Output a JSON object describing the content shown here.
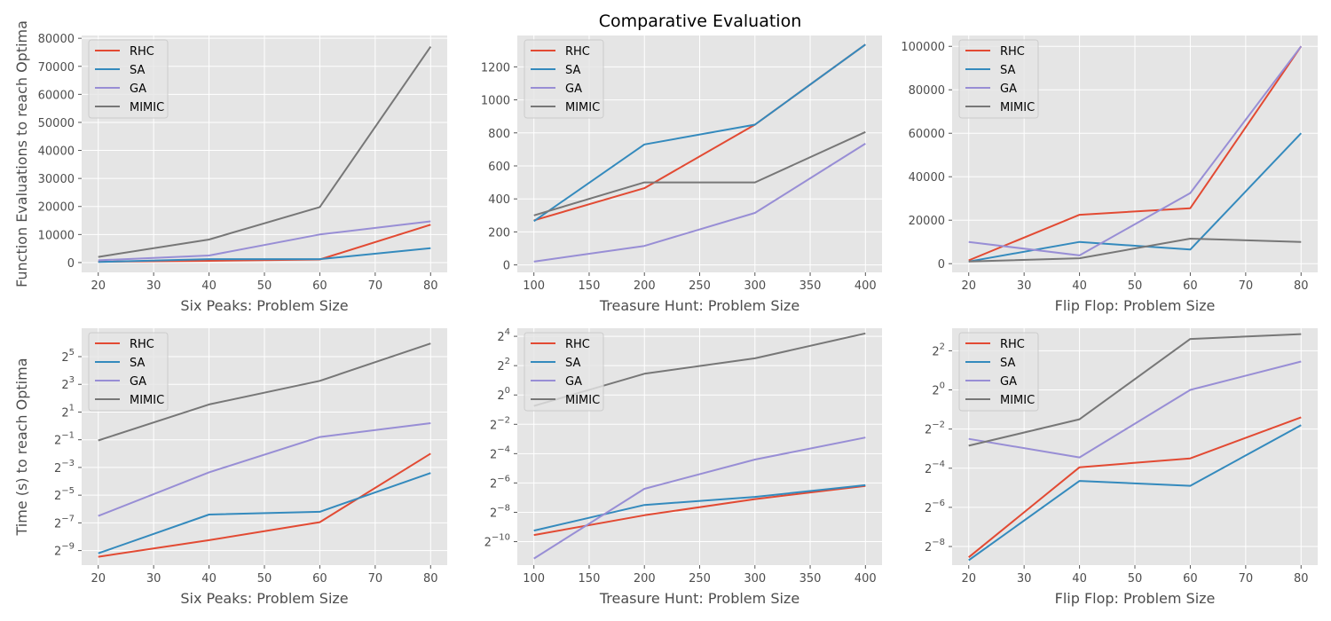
{
  "figure": {
    "title": "Comparative Evaluation",
    "series_colors": {
      "RHC": "#E24A33",
      "SA": "#348ABD",
      "GA": "#988ED5",
      "MIMIC": "#777777"
    }
  },
  "chart_data": [
    {
      "type": "line",
      "xlabel": "Six Peaks: Problem Size",
      "ylabel": "Function Evaluations to reach Optima",
      "x": [
        20,
        40,
        60,
        80
      ],
      "xticks": [
        "20",
        "30",
        "40",
        "50",
        "60",
        "70",
        "80"
      ],
      "yticks": [
        "0",
        "10000",
        "20000",
        "30000",
        "40000",
        "50000",
        "60000",
        "70000",
        "80000"
      ],
      "xlim": [
        17,
        83
      ],
      "ylim": [
        -3500,
        81000
      ],
      "yscale": "linear",
      "series": [
        {
          "name": "RHC",
          "values": [
            300,
            600,
            1100,
            13500
          ]
        },
        {
          "name": "SA",
          "values": [
            200,
            1200,
            1200,
            5100
          ]
        },
        {
          "name": "GA",
          "values": [
            800,
            2500,
            10000,
            14700
          ]
        },
        {
          "name": "MIMIC",
          "values": [
            2000,
            8200,
            19800,
            77000
          ]
        }
      ],
      "legend": "upper-left",
      "grid": true
    },
    {
      "type": "line",
      "xlabel": "Treasure Hunt: Problem Size",
      "ylabel": "",
      "x": [
        100,
        200,
        300,
        400
      ],
      "xticks": [
        "100",
        "150",
        "200",
        "250",
        "300",
        "350",
        "400"
      ],
      "yticks": [
        "0",
        "200",
        "400",
        "600",
        "800",
        "1000",
        "1200"
      ],
      "xlim": [
        85,
        415
      ],
      "ylim": [
        -45,
        1390
      ],
      "yscale": "linear",
      "series": [
        {
          "name": "RHC",
          "values": [
            270,
            465,
            850,
            1335
          ]
        },
        {
          "name": "SA",
          "values": [
            265,
            730,
            850,
            1335
          ]
        },
        {
          "name": "GA",
          "values": [
            20,
            115,
            315,
            735
          ]
        },
        {
          "name": "MIMIC",
          "values": [
            300,
            500,
            500,
            805
          ]
        }
      ],
      "legend": "upper-left",
      "grid": true
    },
    {
      "type": "line",
      "xlabel": "Flip Flop: Problem Size",
      "ylabel": "",
      "x": [
        20,
        40,
        60,
        80
      ],
      "xticks": [
        "20",
        "30",
        "40",
        "50",
        "60",
        "70",
        "80"
      ],
      "yticks": [
        "0",
        "20000",
        "40000",
        "60000",
        "80000",
        "100000"
      ],
      "xlim": [
        17,
        83
      ],
      "ylim": [
        -4000,
        105000
      ],
      "yscale": "linear",
      "series": [
        {
          "name": "RHC",
          "values": [
            1500,
            22500,
            25500,
            100000
          ]
        },
        {
          "name": "SA",
          "values": [
            1000,
            10000,
            6500,
            60000
          ]
        },
        {
          "name": "GA",
          "values": [
            10000,
            3800,
            32500,
            100000
          ]
        },
        {
          "name": "MIMIC",
          "values": [
            1000,
            2500,
            11500,
            10000
          ]
        }
      ],
      "legend": "upper-left",
      "grid": true
    },
    {
      "type": "line",
      "xlabel": "Six Peaks: Problem Size",
      "ylabel": "Time (s) to reach Optima",
      "x": [
        20,
        40,
        60,
        80
      ],
      "xticks": [
        "20",
        "30",
        "40",
        "50",
        "60",
        "70",
        "80"
      ],
      "yticks": [
        {
          "base": "2",
          "exp": "−9"
        },
        {
          "base": "2",
          "exp": "−7"
        },
        {
          "base": "2",
          "exp": "−5"
        },
        {
          "base": "2",
          "exp": "−3"
        },
        {
          "base": "2",
          "exp": "−1"
        },
        {
          "base": "2",
          "exp": "1"
        },
        {
          "base": "2",
          "exp": "3"
        },
        {
          "base": "2",
          "exp": "5"
        }
      ],
      "xlim": [
        17,
        83
      ],
      "ylim": [
        -10.05,
        7.05
      ],
      "yscale": "log2",
      "series": [
        {
          "name": "RHC",
          "values": [
            -9.45,
            -8.25,
            -6.95,
            -2.0
          ]
        },
        {
          "name": "SA",
          "values": [
            -9.2,
            -6.4,
            -6.2,
            -3.4
          ]
        },
        {
          "name": "GA",
          "values": [
            -6.5,
            -3.35,
            -0.8,
            0.2
          ]
        },
        {
          "name": "MIMIC",
          "values": [
            -1.05,
            1.55,
            3.25,
            5.95
          ]
        }
      ],
      "legend": "upper-left",
      "grid": true
    },
    {
      "type": "line",
      "xlabel": "Treasure Hunt: Problem Size",
      "ylabel": "",
      "x": [
        100,
        200,
        300,
        400
      ],
      "xticks": [
        "100",
        "150",
        "200",
        "250",
        "300",
        "350",
        "400"
      ],
      "yticks": [
        {
          "base": "2",
          "exp": "−10"
        },
        {
          "base": "2",
          "exp": "−8"
        },
        {
          "base": "2",
          "exp": "−6"
        },
        {
          "base": "2",
          "exp": "−4"
        },
        {
          "base": "2",
          "exp": "−2"
        },
        {
          "base": "2",
          "exp": "0"
        },
        {
          "base": "2",
          "exp": "2"
        },
        {
          "base": "2",
          "exp": "4"
        }
      ],
      "xlim": [
        85,
        415
      ],
      "ylim": [
        -11.6,
        4.55
      ],
      "yscale": "log2",
      "series": [
        {
          "name": "RHC",
          "values": [
            -9.55,
            -8.2,
            -7.1,
            -6.2
          ]
        },
        {
          "name": "SA",
          "values": [
            -9.25,
            -7.5,
            -6.95,
            -6.15
          ]
        },
        {
          "name": "GA",
          "values": [
            -11.15,
            -6.4,
            -4.4,
            -2.9
          ]
        },
        {
          "name": "MIMIC",
          "values": [
            -0.75,
            1.45,
            2.5,
            4.2
          ]
        }
      ],
      "legend": "upper-left",
      "grid": true
    },
    {
      "type": "line",
      "xlabel": "Flip Flop: Problem Size",
      "ylabel": "",
      "x": [
        20,
        40,
        60,
        80
      ],
      "xticks": [
        "20",
        "30",
        "40",
        "50",
        "60",
        "70",
        "80"
      ],
      "yticks": [
        {
          "base": "2",
          "exp": "−8"
        },
        {
          "base": "2",
          "exp": "−6"
        },
        {
          "base": "2",
          "exp": "−4"
        },
        {
          "base": "2",
          "exp": "−2"
        },
        {
          "base": "2",
          "exp": "0"
        },
        {
          "base": "2",
          "exp": "2"
        }
      ],
      "xlim": [
        17,
        83
      ],
      "ylim": [
        -8.95,
        3.15
      ],
      "yscale": "log2",
      "series": [
        {
          "name": "RHC",
          "values": [
            -8.55,
            -3.95,
            -3.5,
            -1.4
          ]
        },
        {
          "name": "SA",
          "values": [
            -8.7,
            -4.65,
            -4.9,
            -1.8
          ]
        },
        {
          "name": "GA",
          "values": [
            -2.5,
            -3.45,
            0.0,
            1.45
          ]
        },
        {
          "name": "MIMIC",
          "values": [
            -2.85,
            -1.5,
            2.6,
            2.85
          ]
        }
      ],
      "legend": "upper-left",
      "grid": true
    }
  ]
}
